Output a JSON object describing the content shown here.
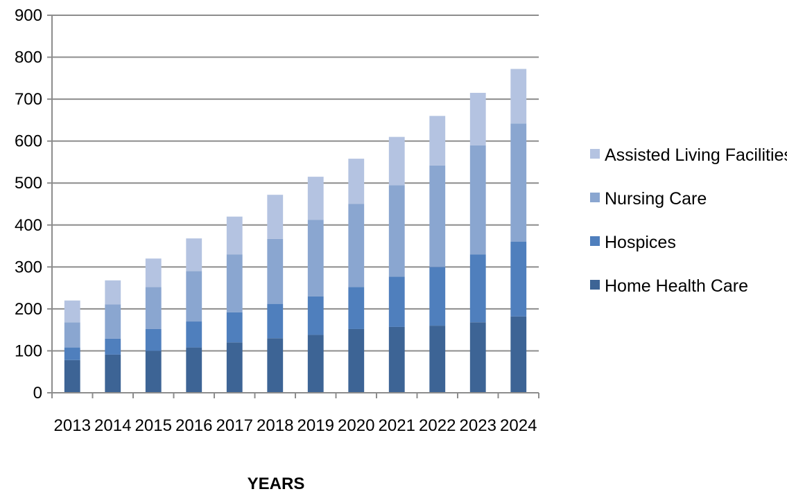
{
  "chart_data": {
    "type": "bar",
    "stacked": true,
    "title": "",
    "xlabel": "YEARS",
    "ylabel": "",
    "ylim": [
      0,
      900
    ],
    "yticks": [
      0,
      100,
      200,
      300,
      400,
      500,
      600,
      700,
      800,
      900
    ],
    "grid": true,
    "legend_position": "right",
    "categories": [
      "2013",
      "2014",
      "2015",
      "2016",
      "2017",
      "2018",
      "2019",
      "2020",
      "2021",
      "2022",
      "2023",
      "2024"
    ],
    "series": [
      {
        "name": "Home Health Care",
        "color": "#3d6495",
        "values": [
          78,
          91,
          100,
          108,
          120,
          130,
          138,
          152,
          157,
          160,
          168,
          182
        ]
      },
      {
        "name": "Hospices",
        "color": "#4f7fbd",
        "values": [
          30,
          38,
          52,
          62,
          72,
          82,
          92,
          100,
          120,
          140,
          162,
          178
        ]
      },
      {
        "name": "Nursing Care",
        "color": "#8aa6d0",
        "values": [
          60,
          82,
          100,
          120,
          138,
          155,
          182,
          198,
          218,
          242,
          260,
          282
        ]
      },
      {
        "name": "Assisted Living Facilities",
        "color": "#b4c3e1",
        "values": [
          52,
          57,
          68,
          78,
          90,
          105,
          103,
          108,
          115,
          118,
          125,
          130
        ]
      }
    ]
  }
}
